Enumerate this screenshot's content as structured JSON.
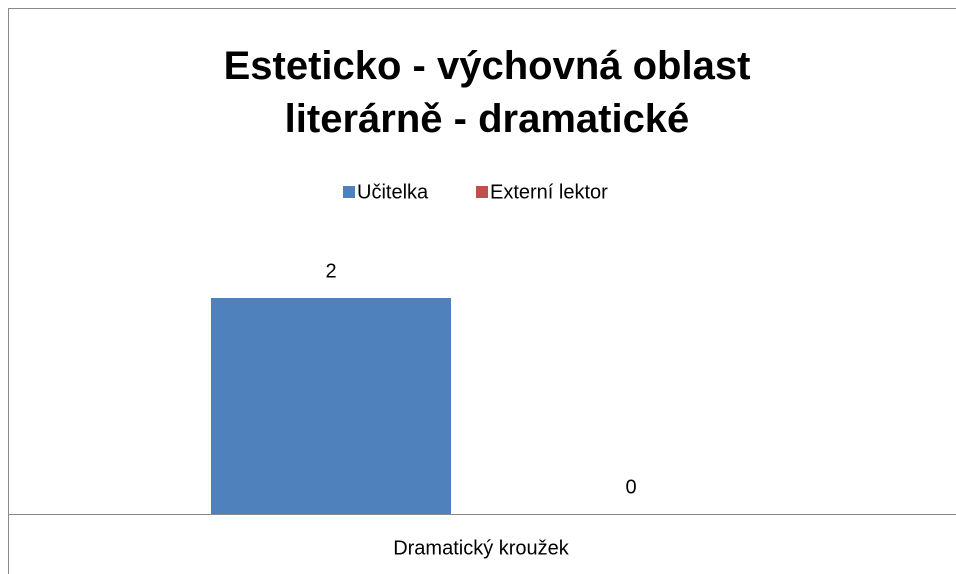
{
  "chart_data": {
    "type": "bar",
    "title": "Esteticko - výchovná oblast literárně - dramatické",
    "categories": [
      "Dramatický kroužek"
    ],
    "series": [
      {
        "name": "Učitelka",
        "color": "#4f81bd",
        "values": [
          2
        ]
      },
      {
        "name": "Externí lektor",
        "color": "#c0504d",
        "values": [
          0
        ]
      }
    ],
    "legend": "top"
  }
}
